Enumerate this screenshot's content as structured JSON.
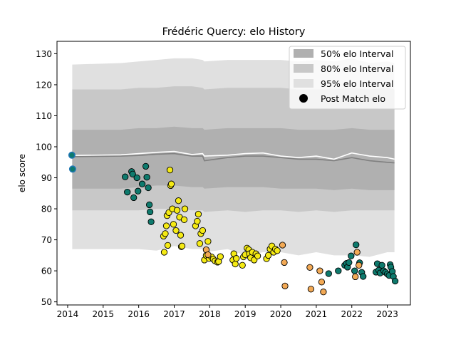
{
  "chart_data": {
    "type": "scatter",
    "title": "Frédéric Quercy: elo History",
    "xlabel": "",
    "ylabel": "elo score",
    "xlim": [
      2013.7,
      2023.65
    ],
    "ylim": [
      49,
      134
    ],
    "xticks": [
      2014,
      2015,
      2016,
      2017,
      2018,
      2019,
      2020,
      2021,
      2022,
      2023
    ],
    "yticks": [
      50,
      60,
      70,
      80,
      90,
      100,
      110,
      120,
      130
    ],
    "grid": false,
    "legend_position": "top-right",
    "legend": [
      {
        "label": "50% elo Interval",
        "kind": "band",
        "color": "#b0b0b0"
      },
      {
        "label": "80% elo Interval",
        "kind": "band",
        "color": "#c8c8c8"
      },
      {
        "label": "95% elo Interval",
        "kind": "band",
        "color": "#e0e0e0"
      },
      {
        "label": "Post Match elo",
        "kind": "marker",
        "color": "#000000"
      }
    ],
    "bands": {
      "x": [
        2014.13,
        2015.5,
        2016.0,
        2016.5,
        2017.0,
        2017.5,
        2017.8,
        2017.85,
        2018.5,
        2019.0,
        2019.5,
        2020.0,
        2020.5,
        2021.0,
        2021.5,
        2022.0,
        2022.5,
        2023.0,
        2023.2
      ],
      "p95_upper": [
        126.5,
        127,
        127.5,
        128,
        128.5,
        128.5,
        128,
        127.5,
        128,
        128,
        128,
        128,
        127.5,
        128,
        127.5,
        128.5,
        127,
        127.5,
        127
      ],
      "p80_upper": [
        118.5,
        118.5,
        119,
        119,
        119.5,
        119.5,
        119,
        118.5,
        119,
        119,
        119,
        119,
        118.5,
        118.5,
        118.5,
        119,
        118.5,
        119,
        118.5
      ],
      "p50_upper": [
        105.5,
        105.5,
        106,
        106,
        106.5,
        106,
        106,
        105.5,
        106,
        106,
        106,
        106,
        105.5,
        105.5,
        105.5,
        106,
        105.5,
        105.5,
        105.5
      ],
      "mean": [
        97.2,
        97.4,
        97.8,
        98.2,
        98.5,
        97.5,
        97.8,
        97.0,
        97.3,
        97.8,
        98.0,
        97.0,
        96.5,
        97.0,
        96.0,
        98.0,
        97.0,
        96.5,
        96.0
      ],
      "median": [
        96.8,
        97.0,
        97.2,
        97.6,
        97.8,
        97.0,
        97.0,
        95.5,
        96.5,
        97.0,
        97.0,
        96.5,
        96.0,
        96.0,
        95.5,
        96.5,
        95.5,
        95.0,
        94.8
      ],
      "p50_lower": [
        86.5,
        86.5,
        87,
        87.5,
        87.5,
        87,
        87,
        86.5,
        87,
        87,
        87,
        86.5,
        86.5,
        86.5,
        86,
        86.5,
        86,
        86,
        86
      ],
      "p80_lower": [
        79.5,
        79.5,
        79.5,
        80,
        80,
        79.5,
        79.5,
        79,
        79.5,
        79,
        79.5,
        79.5,
        79,
        79.5,
        79,
        79.5,
        79.5,
        79.5,
        79.5
      ],
      "p95_lower": [
        67,
        67,
        67,
        66.5,
        68,
        67,
        67,
        66,
        67,
        65,
        66,
        66,
        65,
        66,
        65,
        65,
        64.5,
        66,
        66
      ]
    },
    "series": [
      {
        "color": "#0e7a6d",
        "points": [
          [
            2014.12,
            97.3
          ],
          [
            2014.14,
            92.8
          ],
          [
            2015.62,
            90.3
          ],
          [
            2015.68,
            85.4
          ],
          [
            2015.8,
            92.0
          ],
          [
            2015.83,
            91.2
          ],
          [
            2015.86,
            83.6
          ],
          [
            2015.95,
            90.0
          ],
          [
            2015.98,
            85.7
          ],
          [
            2016.1,
            88.0
          ],
          [
            2016.2,
            93.7
          ],
          [
            2016.23,
            90.2
          ],
          [
            2016.27,
            86.8
          ],
          [
            2016.3,
            81.3
          ],
          [
            2016.32,
            79.0
          ],
          [
            2016.35,
            75.8
          ],
          [
            2021.35,
            59.1
          ],
          [
            2021.62,
            60.0
          ],
          [
            2021.8,
            61.8
          ],
          [
            2021.85,
            62.4
          ],
          [
            2021.88,
            61.2
          ],
          [
            2021.92,
            62.7
          ],
          [
            2021.98,
            64.8
          ],
          [
            2022.08,
            60.0
          ],
          [
            2022.12,
            68.4
          ],
          [
            2022.22,
            62.6
          ],
          [
            2022.28,
            59.5
          ],
          [
            2022.32,
            58.2
          ],
          [
            2022.68,
            59.6
          ],
          [
            2022.72,
            62.3
          ],
          [
            2022.76,
            60.2
          ],
          [
            2022.8,
            59.3
          ],
          [
            2022.85,
            61.8
          ],
          [
            2022.9,
            60.0
          ],
          [
            2022.95,
            59.5
          ],
          [
            2023.0,
            59.0
          ],
          [
            2023.05,
            58.5
          ],
          [
            2023.08,
            62.0
          ],
          [
            2023.1,
            61.2
          ],
          [
            2023.14,
            59.8
          ],
          [
            2023.17,
            58.2
          ],
          [
            2023.22,
            56.7
          ]
        ]
      },
      {
        "color": "#f5ea14",
        "points": [
          [
            2016.7,
            71.2
          ],
          [
            2016.72,
            66.0
          ],
          [
            2016.75,
            72.0
          ],
          [
            2016.78,
            74.5
          ],
          [
            2016.8,
            77.8
          ],
          [
            2016.82,
            68.2
          ],
          [
            2016.85,
            78.8
          ],
          [
            2016.88,
            92.5
          ],
          [
            2016.9,
            87.5
          ],
          [
            2016.92,
            88.0
          ],
          [
            2016.95,
            80.0
          ],
          [
            2016.98,
            75.0
          ],
          [
            2017.05,
            73.0
          ],
          [
            2017.08,
            79.5
          ],
          [
            2017.12,
            82.6
          ],
          [
            2017.15,
            77.3
          ],
          [
            2017.18,
            71.5
          ],
          [
            2017.2,
            67.8
          ],
          [
            2017.22,
            68.0
          ],
          [
            2017.28,
            76.5
          ],
          [
            2017.3,
            80.0
          ],
          [
            2017.6,
            74.5
          ],
          [
            2017.65,
            76.0
          ],
          [
            2017.68,
            78.3
          ],
          [
            2017.72,
            68.8
          ],
          [
            2017.75,
            72.0
          ],
          [
            2017.8,
            73.0
          ],
          [
            2017.85,
            63.5
          ],
          [
            2017.9,
            65.0
          ],
          [
            2017.95,
            69.5
          ],
          [
            2017.98,
            64.0
          ],
          [
            2018.05,
            64.5
          ],
          [
            2018.1,
            63.8
          ],
          [
            2018.15,
            63.2
          ],
          [
            2018.22,
            62.8
          ],
          [
            2018.25,
            63.0
          ],
          [
            2018.3,
            64.6
          ],
          [
            2018.65,
            63.5
          ],
          [
            2018.68,
            65.5
          ],
          [
            2018.72,
            62.2
          ],
          [
            2018.75,
            64.0
          ],
          [
            2018.92,
            61.8
          ],
          [
            2018.95,
            64.5
          ],
          [
            2019.0,
            65.2
          ],
          [
            2019.05,
            67.3
          ],
          [
            2019.1,
            66.8
          ],
          [
            2019.12,
            65.5
          ],
          [
            2019.15,
            64.2
          ],
          [
            2019.2,
            66.0
          ],
          [
            2019.25,
            63.5
          ],
          [
            2019.3,
            65.5
          ],
          [
            2019.35,
            64.8
          ],
          [
            2019.6,
            63.9
          ],
          [
            2019.65,
            65.0
          ],
          [
            2019.7,
            67.0
          ],
          [
            2019.75,
            68.0
          ],
          [
            2019.8,
            66.0
          ],
          [
            2019.85,
            67.0
          ],
          [
            2019.9,
            66.5
          ]
        ]
      },
      {
        "color": "#f2a955",
        "points": [
          [
            2017.9,
            66.8
          ],
          [
            2017.95,
            65.2
          ],
          [
            2020.05,
            68.3
          ],
          [
            2020.1,
            62.7
          ],
          [
            2020.12,
            55.1
          ],
          [
            2020.82,
            61.1
          ],
          [
            2020.85,
            54.1
          ],
          [
            2021.1,
            60.0
          ],
          [
            2021.15,
            56.4
          ],
          [
            2021.2,
            53.2
          ],
          [
            2022.1,
            58.1
          ],
          [
            2022.15,
            66.0
          ],
          [
            2022.2,
            61.8
          ]
        ]
      }
    ]
  }
}
